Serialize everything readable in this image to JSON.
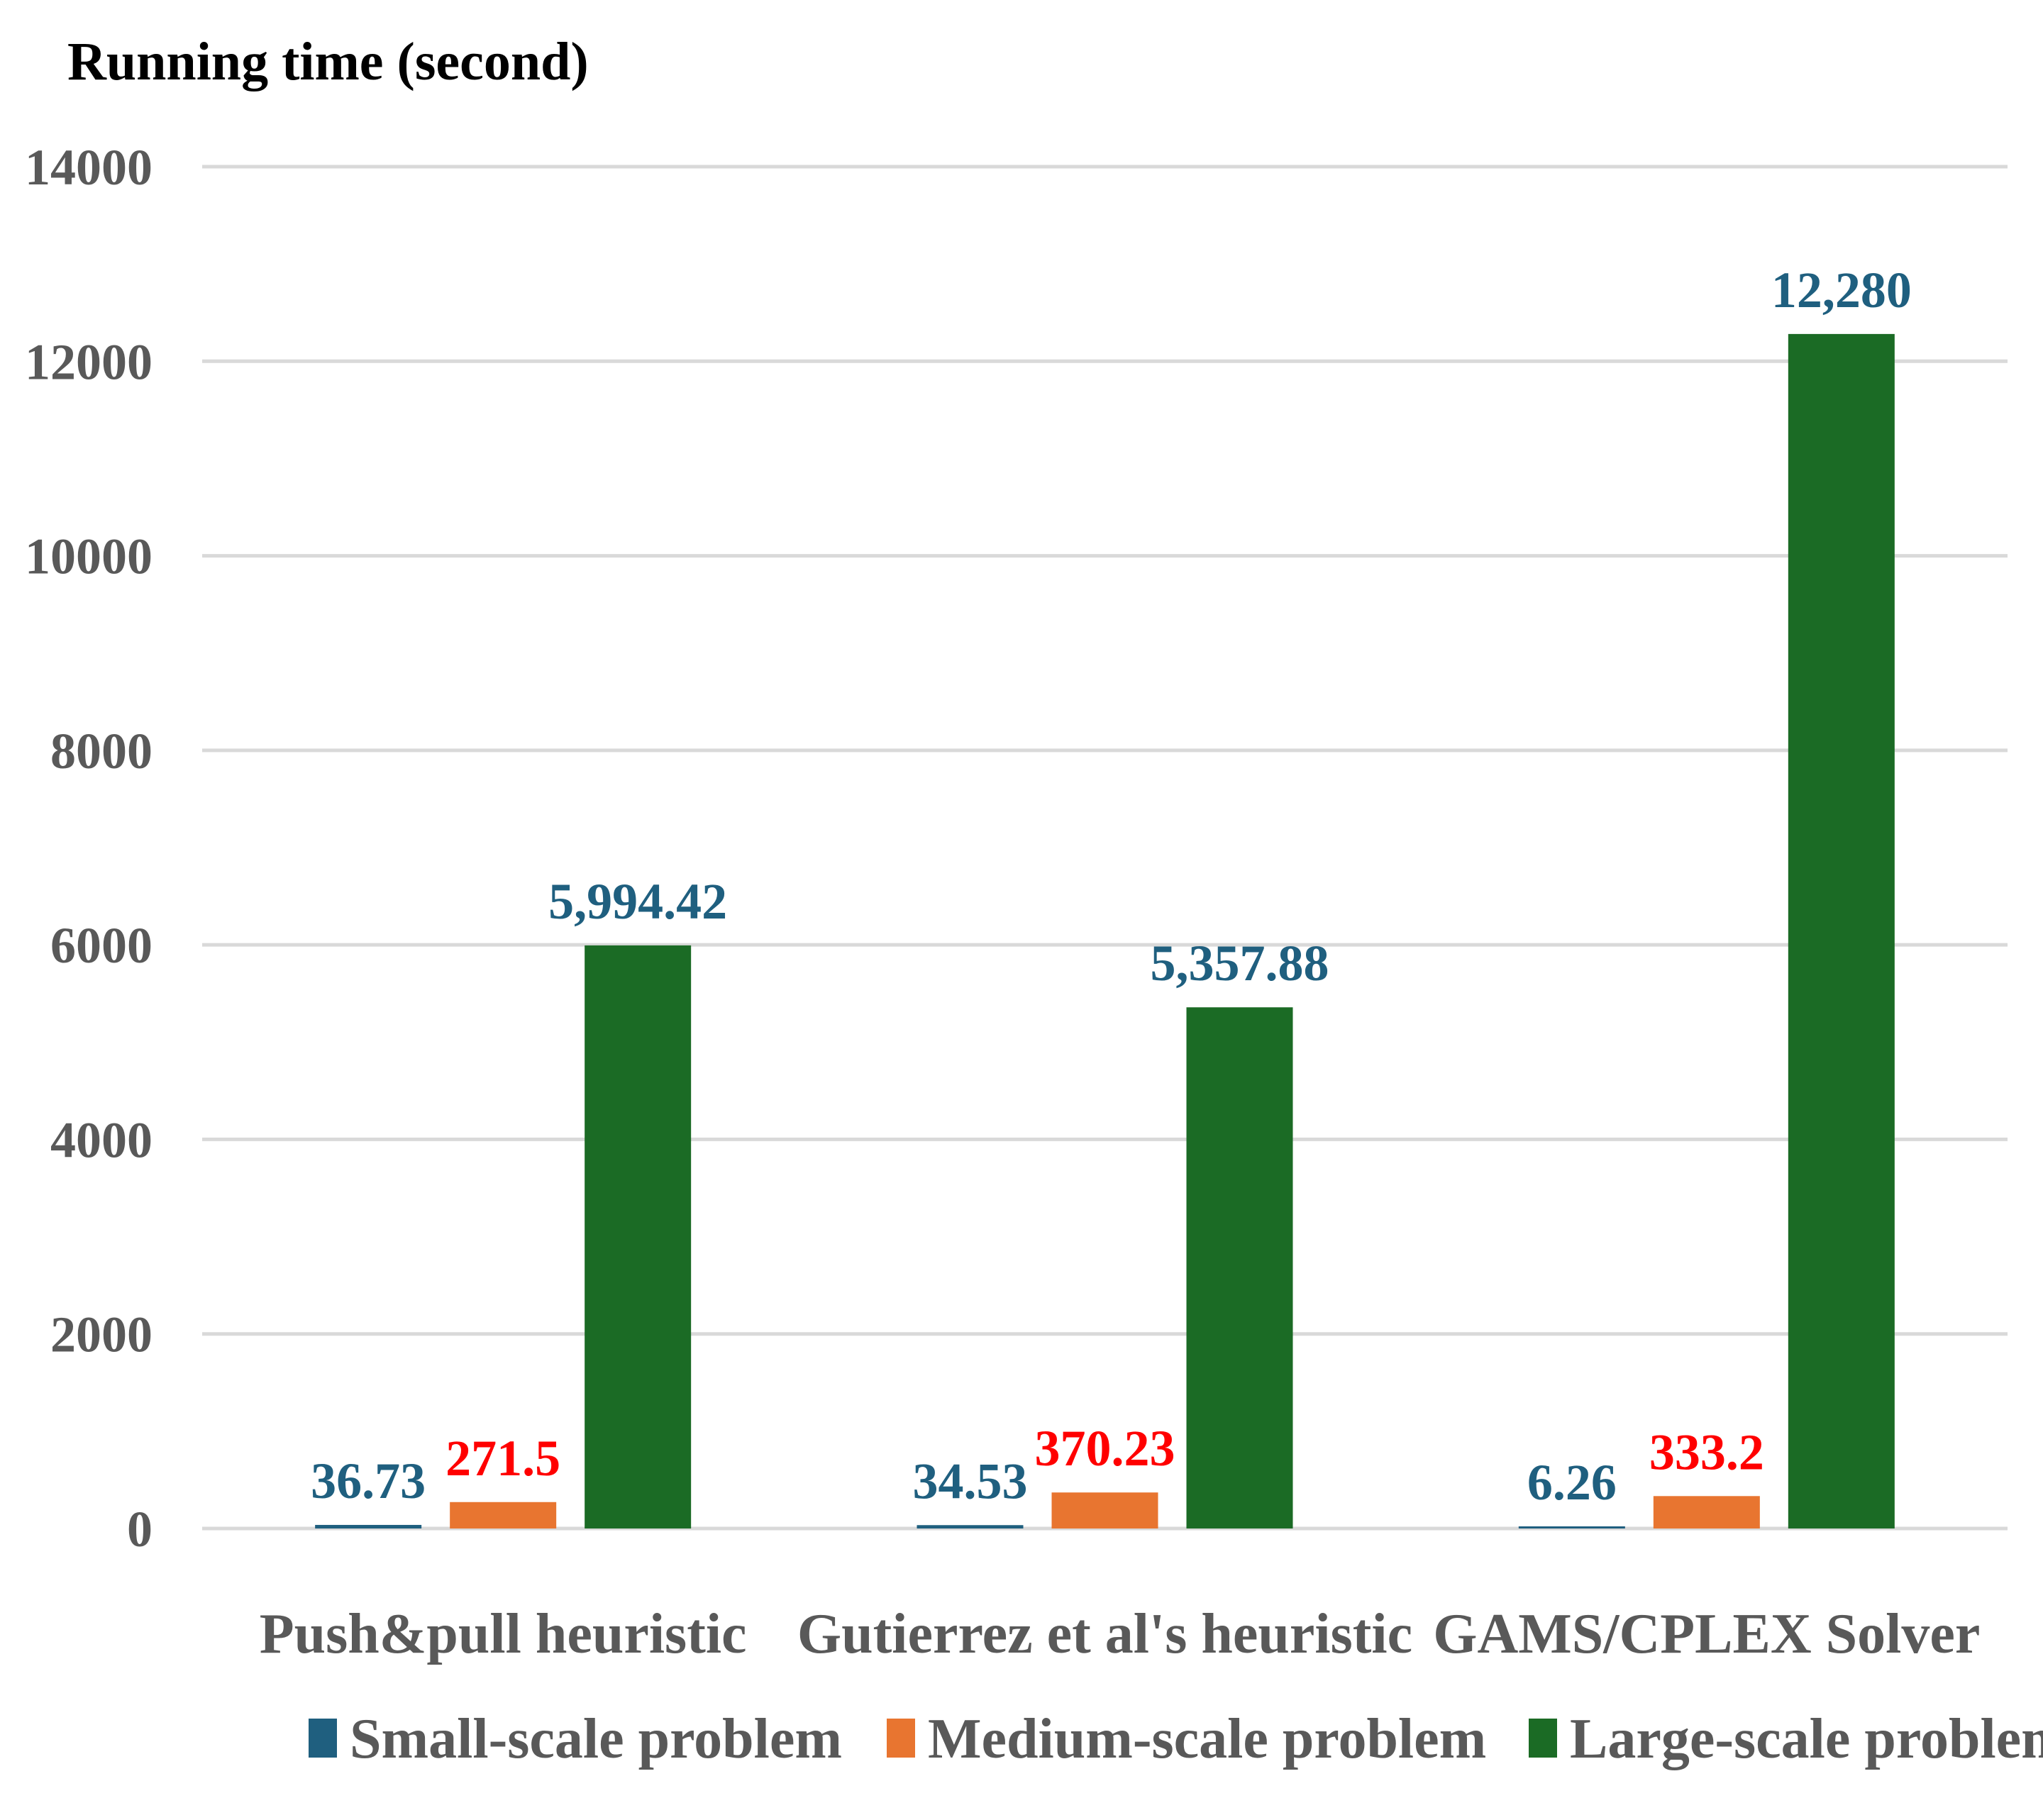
{
  "chart_data": {
    "type": "bar",
    "title": "",
    "ylabel": "Running time (second)",
    "xlabel": "",
    "ylim": [
      0,
      14000
    ],
    "yticks": [
      0,
      2000,
      4000,
      6000,
      8000,
      10000,
      12000,
      14000
    ],
    "ytick_labels": [
      "0",
      "2000",
      "4000",
      "6000",
      "8000",
      "10000",
      "12000",
      "14000"
    ],
    "grid": true,
    "legend_position": "bottom",
    "categories": [
      "Push&pull heuristic",
      "Gutierrez et al's heuristic",
      "GAMS/CPLEX Solver"
    ],
    "series": [
      {
        "name": "Small-scale problem",
        "color": "#1f5f7f",
        "label_color": "#1f5f7f",
        "values": [
          36.73,
          34.53,
          6.26
        ],
        "labels": [
          "36.73",
          "34.53",
          "6.26"
        ]
      },
      {
        "name": "Medium-scale problem",
        "color": "#e87530",
        "label_color": "#ff0000",
        "values": [
          271.5,
          370.23,
          333.2
        ],
        "labels": [
          "271.5",
          "370.23",
          "333.2"
        ]
      },
      {
        "name": "Large-scale problem",
        "color": "#1b6b25",
        "label_color": "#1f5f7f",
        "values": [
          5994.42,
          5357.88,
          12280
        ],
        "labels": [
          "5,994.42",
          "5,357.88",
          "12,280"
        ]
      }
    ]
  }
}
